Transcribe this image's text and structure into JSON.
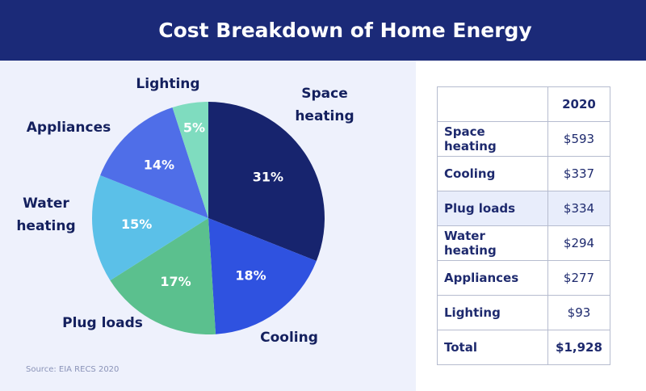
{
  "chart_data": {
    "type": "pie",
    "title": "Cost Breakdown of Home Energy",
    "categories": [
      "Space heating",
      "Cooling",
      "Plug loads",
      "Water heating",
      "Appliances",
      "Lighting"
    ],
    "values": [
      31,
      18,
      17,
      15,
      14,
      5
    ],
    "value_labels": [
      "31%",
      "18%",
      "17%",
      "15%",
      "14%",
      "5%"
    ],
    "colors": [
      "#17246e",
      "#2f52e0",
      "#5bc08e",
      "#5bc0e8",
      "#4f6ee8",
      "#7fdcbf"
    ],
    "source": "Source: EIA RECS 2020"
  },
  "table": {
    "header": "2020",
    "rows": [
      [
        "Space heating",
        "$593"
      ],
      [
        "Cooling",
        "$337"
      ],
      [
        "Plug loads",
        "$334"
      ],
      [
        "Water heating",
        "$294"
      ],
      [
        "Appliances",
        "$277"
      ],
      [
        "Lighting",
        "$93"
      ]
    ],
    "total": [
      "Total",
      "$1,928"
    ]
  }
}
